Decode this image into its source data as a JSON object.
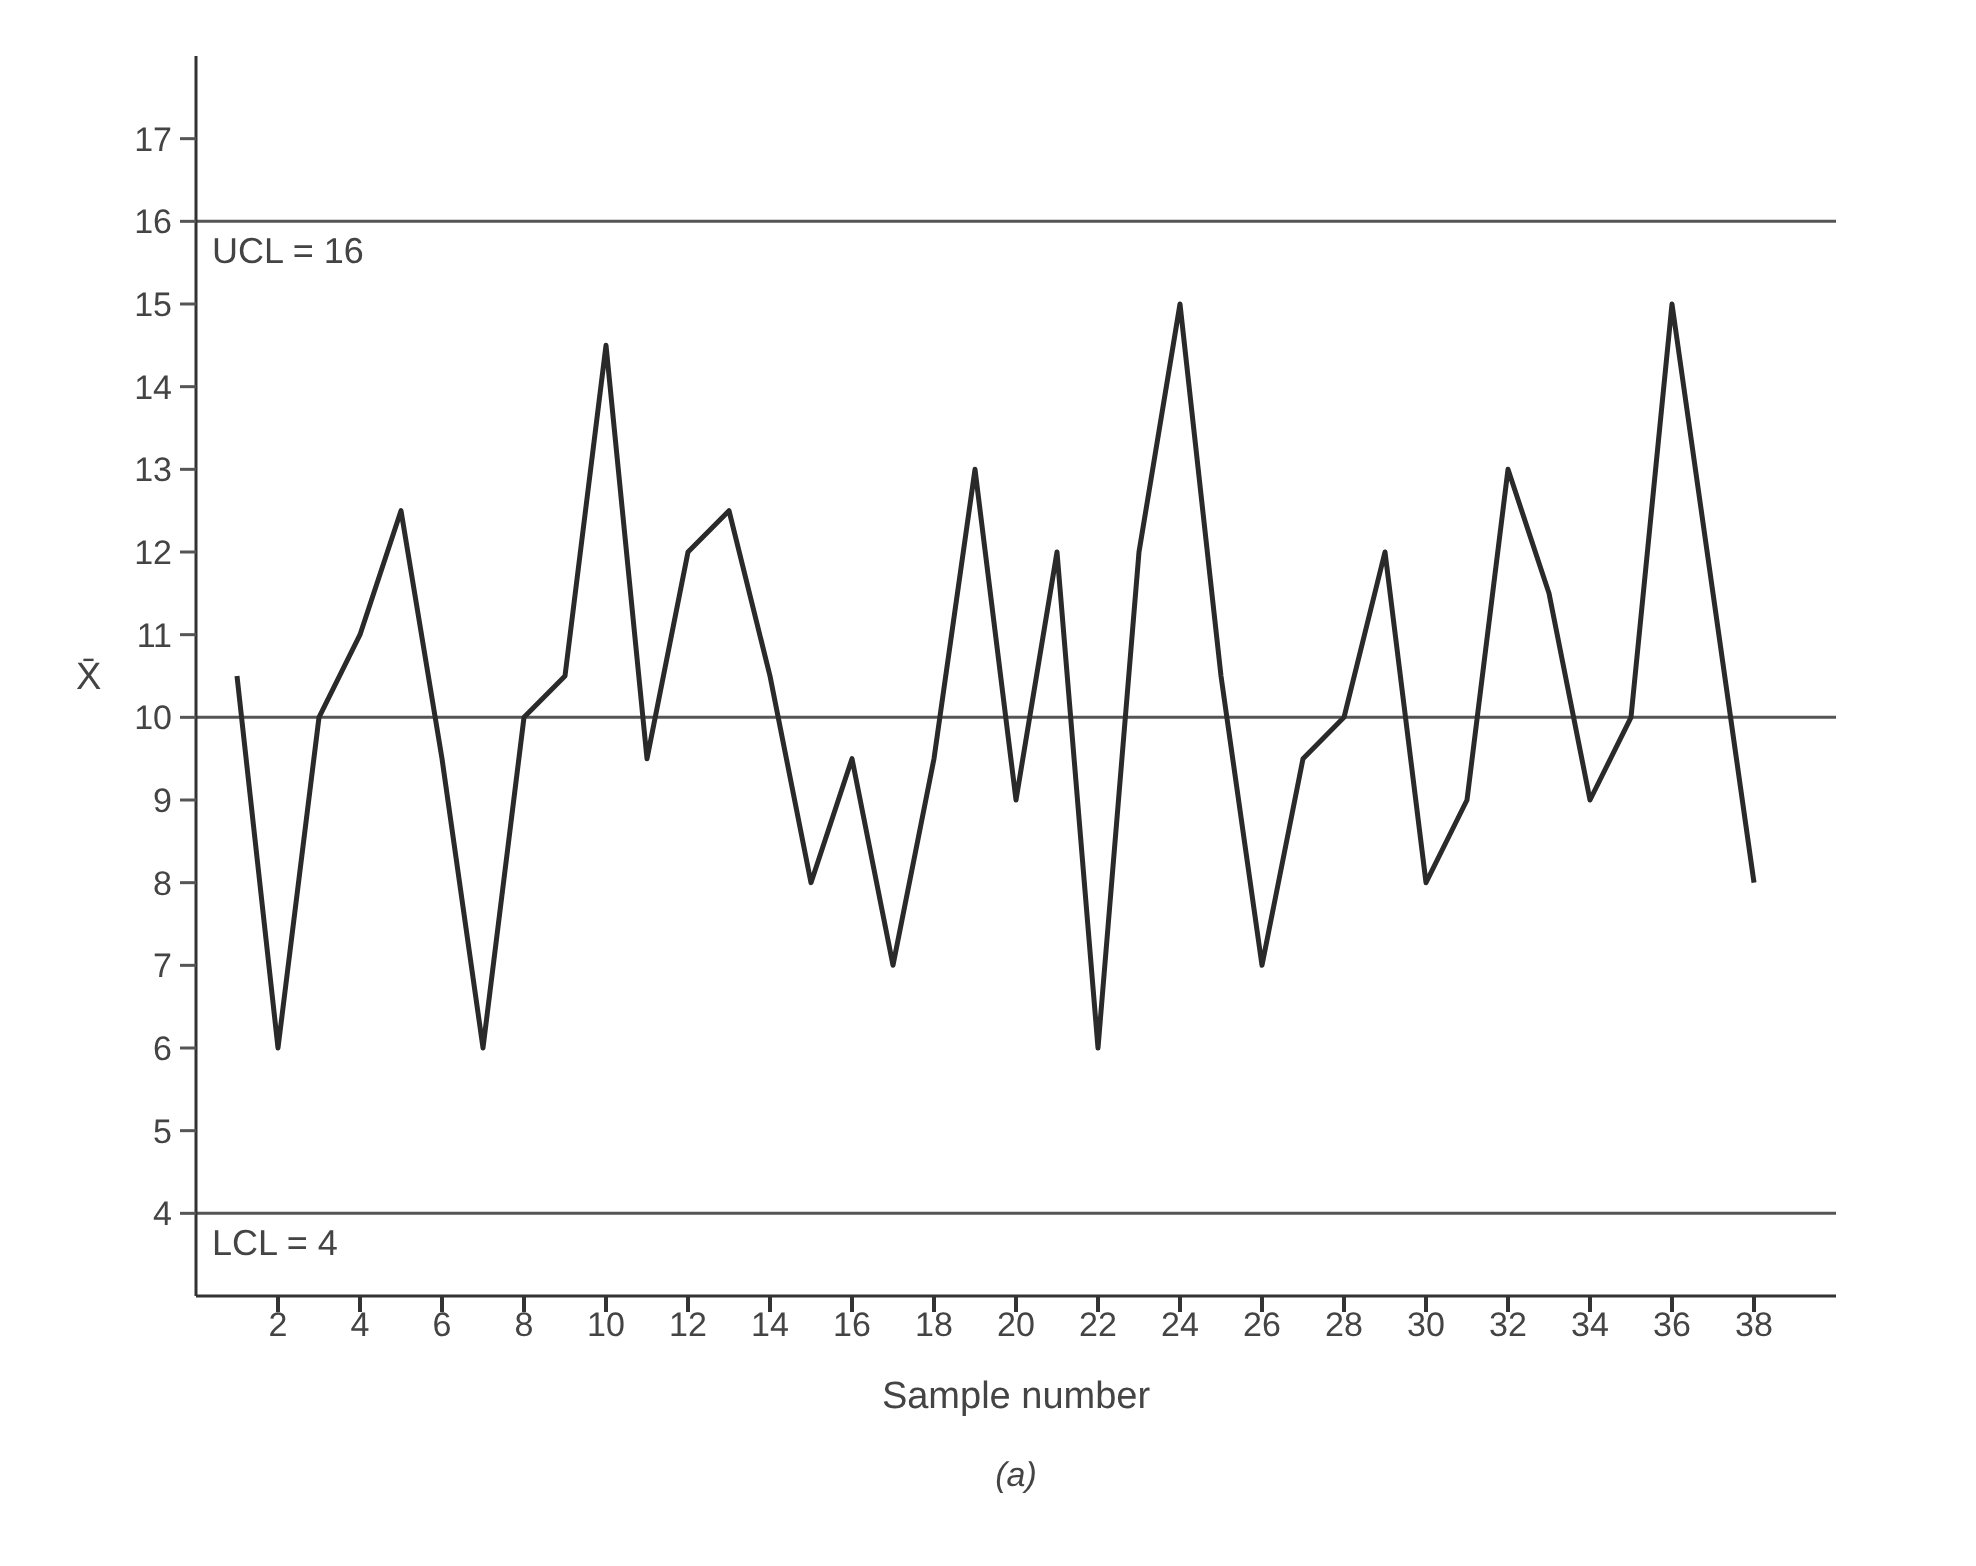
{
  "chart_data": {
    "type": "line",
    "xlabel": "Sample number",
    "ylabel": "X̄",
    "x": [
      1,
      2,
      3,
      4,
      5,
      6,
      7,
      8,
      9,
      10,
      11,
      12,
      13,
      14,
      15,
      16,
      17,
      18,
      19,
      20,
      21,
      22,
      23,
      24,
      25,
      26,
      27,
      28,
      29,
      30,
      31,
      32,
      33,
      34,
      35,
      36,
      37,
      38
    ],
    "series": [
      {
        "color": "#2a2a2a",
        "values": [
          10.5,
          6,
          10,
          11,
          12.5,
          9.5,
          6,
          10,
          10.5,
          14.5,
          9.5,
          12,
          12.5,
          10.5,
          8,
          9.5,
          7,
          9.5,
          13,
          9,
          12,
          6,
          12,
          15,
          10.5,
          7,
          9.5,
          10,
          12,
          8,
          9,
          13,
          11.5,
          9,
          10,
          15,
          11.5,
          8
        ]
      }
    ],
    "xlim": [
      0,
      40
    ],
    "xticks": [
      2,
      4,
      6,
      8,
      10,
      12,
      14,
      16,
      18,
      20,
      22,
      24,
      26,
      28,
      30,
      32,
      34,
      36,
      38
    ],
    "ylim": [
      3,
      18
    ],
    "yticks": [
      4,
      5,
      6,
      7,
      8,
      9,
      10,
      11,
      12,
      13,
      14,
      15,
      16,
      17
    ],
    "ref_lines": [
      {
        "axis": "y",
        "value": 16,
        "label": "UCL = 16",
        "color": "#555555"
      },
      {
        "axis": "y",
        "value": 10,
        "label": null,
        "color": "#555555"
      },
      {
        "axis": "y",
        "value": 4,
        "label": "LCL = 4",
        "color": "#555555"
      }
    ],
    "annotations": [
      "(a)"
    ],
    "grid": false,
    "legend": false,
    "marker": "none",
    "line_style": "solid"
  }
}
